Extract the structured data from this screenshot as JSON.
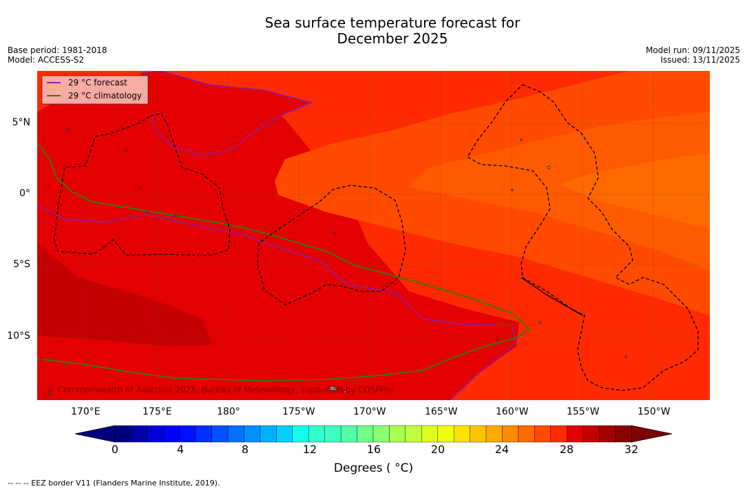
{
  "title_line1": "Sea surface temperature forecast for",
  "title_line2": "December 2025",
  "meta_left": {
    "base_period": "Base period: 1981-2018",
    "model": "Model: ACCESS-S2"
  },
  "meta_right": {
    "model_run": "Model run: 09/11/2025",
    "issued": "Issued: 13/11/2025"
  },
  "map": {
    "lat_ticks": [
      "5°N",
      "0°",
      "5°S",
      "10°S"
    ],
    "lon_ticks": [
      "170°E",
      "175°E",
      "180°",
      "175°W",
      "170°W",
      "165°W",
      "160°W",
      "155°W",
      "150°W"
    ],
    "legend": [
      {
        "label": "29 °C  forecast",
        "color": "#8b1fa0"
      },
      {
        "label": "29 °C  climatology",
        "color": "#2e7d10"
      }
    ],
    "copyright": "© Commonwealth of Australia 2025, Bureau of Meteorology, supported by COSPPac"
  },
  "colorbar": {
    "ticks": [
      "0",
      "4",
      "8",
      "12",
      "16",
      "20",
      "24",
      "28",
      "32"
    ],
    "label": "Degrees ( °C)",
    "colors": [
      "#00007f",
      "#0000a9",
      "#0000d4",
      "#0000ff",
      "#0010ff",
      "#0030ff",
      "#0050ff",
      "#0070ff",
      "#0090ff",
      "#00b0ff",
      "#00d0ff",
      "#10ffef",
      "#30ffcf",
      "#3cffc0",
      "#50ffa9",
      "#70ff89",
      "#89ff70",
      "#a9ff50",
      "#c0ff3c",
      "#dcff20",
      "#efff10",
      "#ffe400",
      "#ffc400",
      "#ffaa00",
      "#ff8a00",
      "#ff6a00",
      "#ff4a00",
      "#ff2a00",
      "#e40000",
      "#c40000",
      "#a40000",
      "#8a0000"
    ]
  },
  "footnote": "--  --  -- EEZ border V11 (Flanders Marine Institute, 2019)."
}
